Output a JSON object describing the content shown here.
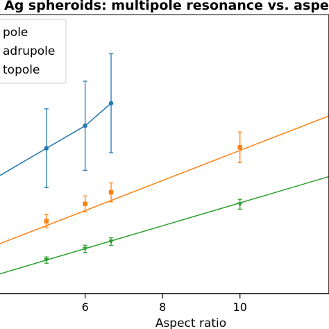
{
  "chart_data": {
    "type": "line",
    "title": "Ag spheroids: multipole resonance vs. aspect",
    "xlabel": "Aspect ratio",
    "ylabel": "",
    "xlim": [
      3.8,
      12.3
    ],
    "ylim": [
      0.8,
      13.2
    ],
    "x_ticks": [
      6,
      8,
      10
    ],
    "x_tick_labels": [
      "6",
      "8",
      "10"
    ],
    "grid": false,
    "legend_position": "top-left",
    "legend_labels": [
      "pole",
      "adrupole",
      "topole"
    ],
    "series": [
      {
        "name": "pole",
        "color": "#1f77b4",
        "marker": "circle",
        "points": [
          {
            "x": 5.0,
            "y": 7.26,
            "err": 1.75
          },
          {
            "x": 6.0,
            "y": 8.26,
            "err": 1.98
          },
          {
            "x": 6.67,
            "y": 9.26,
            "err": 2.2
          }
        ],
        "line": [
          [
            3.8,
            6.05
          ],
          [
            5.0,
            7.26
          ],
          [
            6.0,
            8.26
          ],
          [
            6.67,
            9.26
          ]
        ]
      },
      {
        "name": "adrupole",
        "color": "#ff7f0e",
        "marker": "square",
        "points": [
          {
            "x": 5.0,
            "y": 4.02,
            "err": 0.3
          },
          {
            "x": 6.0,
            "y": 4.79,
            "err": 0.35
          },
          {
            "x": 6.67,
            "y": 5.3,
            "err": 0.42
          },
          {
            "x": 10.0,
            "y": 7.3,
            "err": 0.68
          }
        ],
        "line": [
          [
            3.8,
            3.02
          ],
          [
            12.3,
            8.7
          ]
        ]
      },
      {
        "name": "topole",
        "color": "#2ca02c",
        "marker": "triangle-down",
        "points": [
          {
            "x": 5.0,
            "y": 2.29,
            "err": 0.14
          },
          {
            "x": 6.0,
            "y": 2.79,
            "err": 0.16
          },
          {
            "x": 6.67,
            "y": 3.11,
            "err": 0.17
          },
          {
            "x": 10.0,
            "y": 4.77,
            "err": 0.22
          }
        ],
        "line": [
          [
            3.8,
            1.68
          ],
          [
            12.3,
            6.0
          ]
        ]
      }
    ]
  }
}
